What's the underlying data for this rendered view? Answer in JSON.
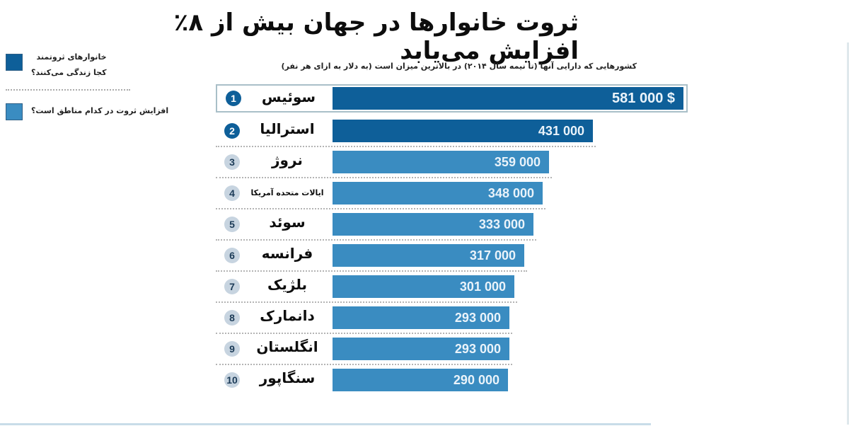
{
  "title": "ثروت خانوارها در جهان بیش از ۸٪ افزایش می‌یابد",
  "legend": {
    "items": [
      {
        "label_line1": "خانوارهای ثروتمند",
        "label_line2": "کجا زندگی می‌کنند؟",
        "color": "#0e5f99"
      },
      {
        "label_line1": "افزایش ثروت در کدام مناطق است؟",
        "label_line2": "",
        "color": "#3a8cc1"
      }
    ]
  },
  "subtitle": "کشورهایی که دارایی آنها (تا نیمه سال ۲۰۱۴) در بالاترین میزان است (به دلار به ازای هر نفر)",
  "colors": {
    "bar_dark": "#0e5f99",
    "bar_light": "#3a8cc1",
    "highlight_border": "#a9bfc8"
  },
  "rows": [
    {
      "rank": "1",
      "country": "سوئیس",
      "value_label": "581 000 $",
      "value": 581000,
      "dark": true,
      "highlight": true
    },
    {
      "rank": "2",
      "country": "استرالیا",
      "value_label": "431 000",
      "value": 431000,
      "dark": true,
      "highlight": false
    },
    {
      "rank": "3",
      "country": "نروژ",
      "value_label": "359 000",
      "value": 359000,
      "dark": false,
      "highlight": false
    },
    {
      "rank": "4",
      "country": "ایالات متحده آمریکا",
      "value_label": "348 000",
      "value": 348000,
      "dark": false,
      "highlight": false
    },
    {
      "rank": "5",
      "country": "سوئد",
      "value_label": "333 000",
      "value": 333000,
      "dark": false,
      "highlight": false
    },
    {
      "rank": "6",
      "country": "فرانسه",
      "value_label": "317 000",
      "value": 317000,
      "dark": false,
      "highlight": false
    },
    {
      "rank": "7",
      "country": "بلژیک",
      "value_label": "301 000",
      "value": 301000,
      "dark": false,
      "highlight": false
    },
    {
      "rank": "8",
      "country": "دانمارک",
      "value_label": "293 000",
      "value": 293000,
      "dark": false,
      "highlight": false
    },
    {
      "rank": "9",
      "country": "انگلستان",
      "value_label": "293 000",
      "value": 293000,
      "dark": false,
      "highlight": false
    },
    {
      "rank": "10",
      "country": "سنگاپور",
      "value_label": "290 000",
      "value": 290000,
      "dark": false,
      "highlight": false
    }
  ],
  "chart_data": {
    "type": "bar",
    "orientation": "horizontal",
    "title": "ثروت خانوارها در جهان بیش از ۸٪ افزایش می‌یابد",
    "subtitle": "کشورهایی که دارایی آنها (تا نیمه سال ۲۰۱۴) در بالاترین میزان است (به دلار به ازای هر نفر)",
    "categories": [
      "سوئیس",
      "استرالیا",
      "نروژ",
      "ایالات متحده آمریکا",
      "سوئد",
      "فرانسه",
      "بلژیک",
      "دانمارک",
      "انگلستان",
      "سنگاپور"
    ],
    "ranks": [
      1,
      2,
      3,
      4,
      5,
      6,
      7,
      8,
      9,
      10
    ],
    "values": [
      581000,
      431000,
      359000,
      348000,
      333000,
      317000,
      301000,
      293000,
      293000,
      290000
    ],
    "value_labels": [
      "581 000 $",
      "431 000",
      "359 000",
      "348 000",
      "333 000",
      "317 000",
      "301 000",
      "293 000",
      "293 000",
      "290 000"
    ],
    "unit": "USD per person",
    "xlabel": "",
    "ylabel": "",
    "grid": false,
    "legend": [
      "خانوارهای ثروتمند کجا زندگی می‌کنند؟",
      "افزایش ثروت در کدام مناطق است؟"
    ],
    "legend_position": "left"
  }
}
